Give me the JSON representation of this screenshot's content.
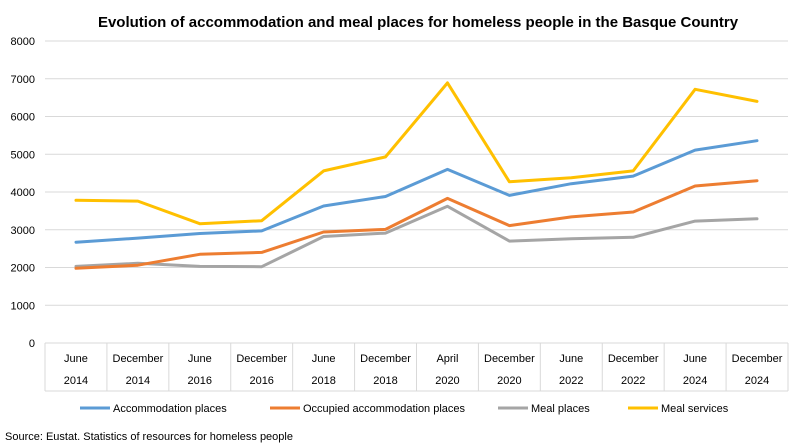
{
  "chart_data": {
    "type": "line",
    "title": "Evolution of accommodation and meal places for homeless people in the Basque Country",
    "xlabel": "",
    "ylabel": "",
    "categories": [
      {
        "period": "June",
        "year": "2014"
      },
      {
        "period": "December",
        "year": "2014"
      },
      {
        "period": "June",
        "year": "2016"
      },
      {
        "period": "December",
        "year": "2016"
      },
      {
        "period": "June",
        "year": "2018"
      },
      {
        "period": "December",
        "year": "2018"
      },
      {
        "period": "April",
        "year": "2020"
      },
      {
        "period": "December",
        "year": "2020"
      },
      {
        "period": "June",
        "year": "2022"
      },
      {
        "period": "December",
        "year": "2022"
      },
      {
        "period": "June",
        "year": "2024"
      },
      {
        "period": "December",
        "year": "2024"
      }
    ],
    "ylim": [
      0,
      8000
    ],
    "yticks": [
      "0",
      "1000",
      "2000",
      "3000",
      "4000",
      "5000",
      "6000",
      "7000",
      "8000"
    ],
    "grid": true,
    "legend_position": "bottom",
    "series": [
      {
        "name": "Accommodation places",
        "color": "#5B9BD5",
        "values": [
          2670,
          2780,
          2900,
          2970,
          3630,
          3880,
          4600,
          3910,
          4220,
          4420,
          5110,
          5360
        ]
      },
      {
        "name": "Occupied accommodation places",
        "color": "#ED7D31",
        "values": [
          1980,
          2060,
          2350,
          2400,
          2940,
          3010,
          3830,
          3110,
          3340,
          3470,
          4160,
          4300
        ]
      },
      {
        "name": "Meal places",
        "color": "#A5A5A5",
        "values": [
          2030,
          2110,
          2030,
          2020,
          2820,
          2910,
          3620,
          2700,
          2760,
          2800,
          3230,
          3290
        ]
      },
      {
        "name": "Meal services",
        "color": "#FFC000",
        "values": [
          3780,
          3760,
          3160,
          3240,
          4560,
          4930,
          6890,
          4270,
          4380,
          4560,
          6720,
          6400
        ]
      }
    ],
    "source": "Source: Eustat. Statistics of resources for homeless people"
  }
}
